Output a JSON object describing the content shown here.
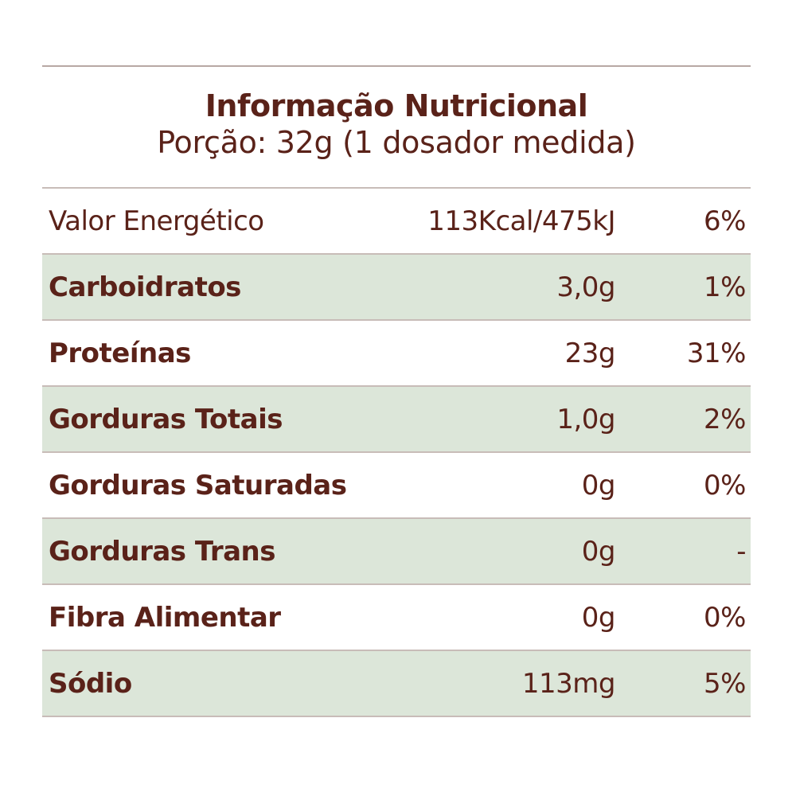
{
  "header": {
    "title": "Informação Nutricional",
    "subtitle": "Porção: 32g (1 dosador medida)"
  },
  "rows": [
    {
      "name": "Valor Energético",
      "amount": "113Kcal/475kJ",
      "dv": "6%"
    },
    {
      "name": "Carboidratos",
      "amount": "3,0g",
      "dv": "1%"
    },
    {
      "name": "Proteínas",
      "amount": "23g",
      "dv": "31%"
    },
    {
      "name": "Gorduras Totais",
      "amount": "1,0g",
      "dv": "2%"
    },
    {
      "name": "Gorduras Saturadas",
      "amount": "0g",
      "dv": "0%"
    },
    {
      "name": "Gorduras Trans",
      "amount": "0g",
      "dv": "-"
    },
    {
      "name": "Fibra Alimentar",
      "amount": "0g",
      "dv": "0%"
    },
    {
      "name": "Sódio",
      "amount": "113mg",
      "dv": "5%"
    }
  ],
  "colors": {
    "text": "#5a2219",
    "row_shade": "#dce6d9",
    "rule": "#c8bcb8"
  }
}
